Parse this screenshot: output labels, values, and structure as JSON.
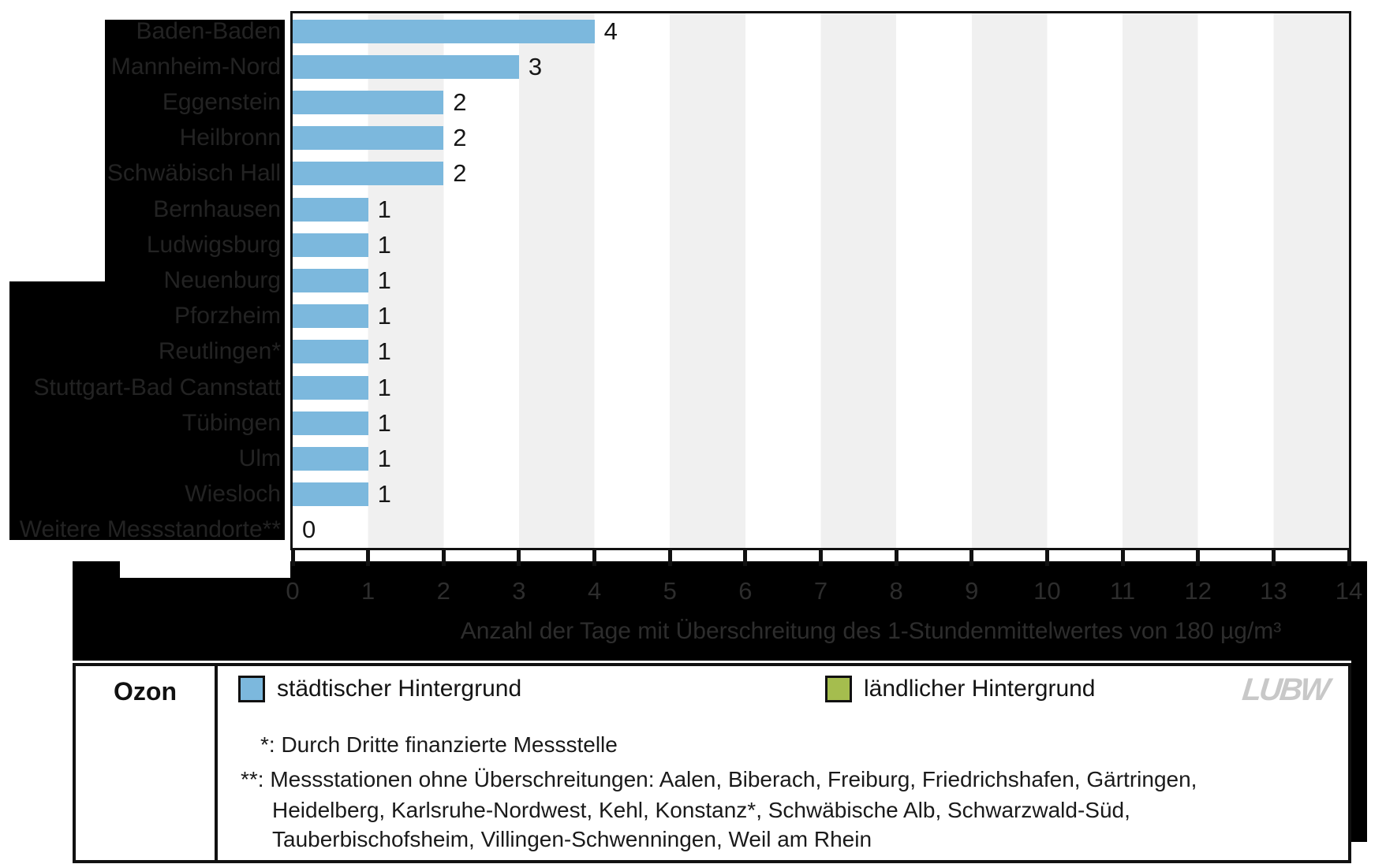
{
  "chart_data": {
    "type": "bar",
    "orientation": "horizontal",
    "categories": [
      "Baden-Baden",
      "Mannheim-Nord",
      "Eggenstein",
      "Heilbronn",
      "Schwäbisch Hall",
      "Bernhausen",
      "Ludwigsburg",
      "Neuenburg",
      "Pforzheim",
      "Reutlingen*",
      "Stuttgart-Bad Cannstatt",
      "Tübingen",
      "Ulm",
      "Wiesloch",
      "Weitere Messstandorte**"
    ],
    "values": [
      4,
      3,
      2,
      2,
      2,
      1,
      1,
      1,
      1,
      1,
      1,
      1,
      1,
      1,
      0
    ],
    "value_labels": [
      "4",
      "3",
      "2",
      "2",
      "2",
      "1",
      "1",
      "1",
      "1",
      "1",
      "1",
      "1",
      "1",
      "1",
      "0"
    ],
    "xlabel": "Anzahl der Tage mit Überschreitung des 1-Stundenmittelwertes von 180 µg/m³",
    "xlim": [
      0,
      14
    ],
    "xticks": [
      "0",
      "1",
      "2",
      "3",
      "4",
      "5",
      "6",
      "7",
      "8",
      "9",
      "10",
      "11",
      "12",
      "13",
      "14"
    ],
    "grid": "off",
    "legend_position": "bottom",
    "bar_color": "#7cb8dd",
    "stripe_color": "#f0f0f0"
  },
  "legend": {
    "pollutant": "Ozon",
    "items": [
      {
        "label": "städtischer Hintergrund",
        "color": "#7cb8dd"
      },
      {
        "label": "ländlicher Hintergrund",
        "color": "#a5bd4e"
      }
    ],
    "logo": "LUBW",
    "logo_color": "#c8c8c8"
  },
  "footnotes": {
    "star": "*: Durch Dritte finanzierte Messstelle",
    "doublestar_lines": [
      "**: Messstationen ohne Überschreitungen: Aalen, Biberach, Freiburg, Friedrichshafen, Gärtringen,",
      "Heidelberg, Karlsruhe-Nordwest, Kehl, Konstanz*, Schwäbische Alb, Schwarzwald-Süd,",
      "Tauberbischofsheim, Villingen-Schwenningen, Weil am Rhein"
    ]
  }
}
